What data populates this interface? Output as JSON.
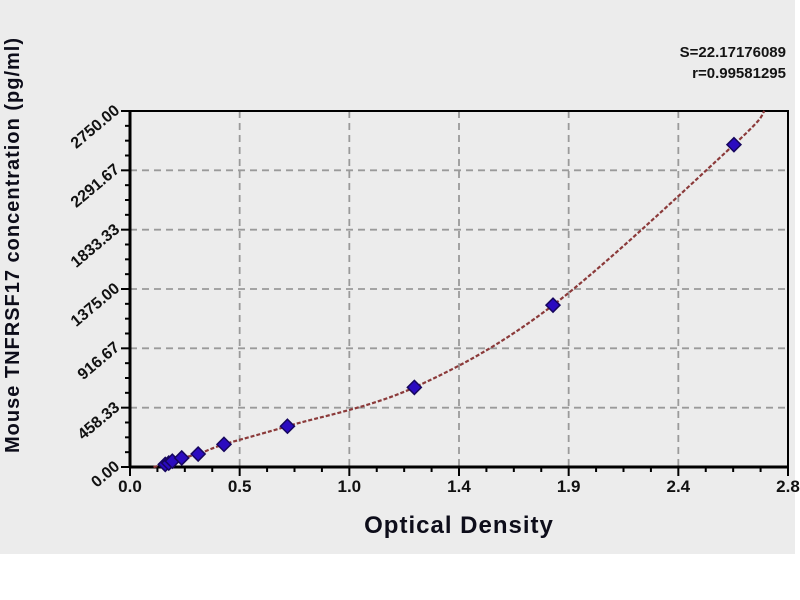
{
  "window": {
    "panel_background": "#ececec",
    "page_background": "#ffffff"
  },
  "chart_data": {
    "type": "scatter",
    "title": "",
    "xlabel": "Optical Density",
    "ylabel": "Mouse TNFRSF17 concentration (pg/ml)",
    "xlim": [
      0,
      2.8
    ],
    "ylim": [
      0,
      2750
    ],
    "x_ticks": {
      "labels": [
        "0.0",
        "0.5",
        "1.0",
        "1.4",
        "1.9",
        "2.4",
        "2.8"
      ],
      "minor_per_interval": 3
    },
    "y_ticks": {
      "labels": [
        "0.00",
        "458.33",
        "916.67",
        "1375.00",
        "1833.33",
        "2291.67",
        "2750.00"
      ],
      "minor_per_interval": 3
    },
    "grid": {
      "show": true,
      "style": "dashed",
      "color": "#9a9a9a"
    },
    "legend": {
      "show": false
    },
    "series": [
      {
        "name": "standard-points",
        "type": "scatter",
        "marker": "diamond",
        "color": "#2B0BC0",
        "edge_color": "#16065E",
        "points": [
          [
            0.15,
            20
          ],
          [
            0.165,
            30
          ],
          [
            0.18,
            45
          ],
          [
            0.22,
            70
          ],
          [
            0.29,
            100
          ],
          [
            0.4,
            175
          ],
          [
            0.67,
            315
          ],
          [
            1.21,
            615
          ],
          [
            1.8,
            1250
          ],
          [
            2.57,
            2490
          ]
        ]
      },
      {
        "name": "fitted-curve",
        "type": "line",
        "color": "#8B3A3A",
        "extends_from": [
          0.1,
          0
        ],
        "extends_to": [
          2.7,
          2750
        ]
      }
    ],
    "annotations": {
      "s_label": "S=22.17176089",
      "r_label": "r=0.99581295"
    }
  }
}
